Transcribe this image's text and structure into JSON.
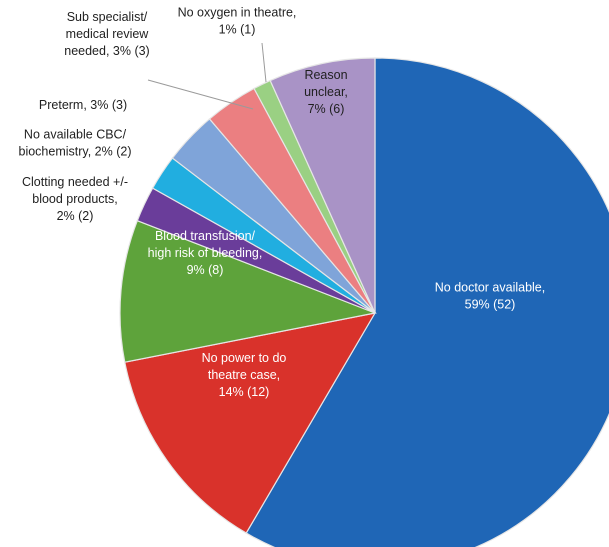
{
  "chart_data": {
    "type": "pie",
    "title": "",
    "slices": [
      {
        "label": "No doctor available, 59% (52)",
        "lines": [
          "No doctor available,",
          "59% (52)"
        ],
        "value": 52,
        "percent": 59,
        "color": "#1f66b6"
      },
      {
        "label": "No power to do theatre case, 14% (12)",
        "lines": [
          "No power to do",
          "theatre case,",
          "14% (12)"
        ],
        "value": 12,
        "percent": 14,
        "color": "#d9322b"
      },
      {
        "label": "Blood transfusion/ high risk of bleeding, 9% (8)",
        "lines": [
          "Blood transfusion/",
          "high risk of bleeding,",
          "9% (8)"
        ],
        "value": 8,
        "percent": 9,
        "color": "#5ea33b"
      },
      {
        "label": "Clotting needed +/- blood products, 2% (2)",
        "lines": [
          "Clotting needed +/-",
          "blood products,",
          "2% (2)"
        ],
        "value": 2,
        "percent": 2,
        "color": "#6a3d9a"
      },
      {
        "label": "No available CBC/ biochemistry, 2% (2)",
        "lines": [
          "No available CBC/",
          "biochemistry, 2% (2)"
        ],
        "value": 2,
        "percent": 2,
        "color": "#21aee0"
      },
      {
        "label": "Preterm, 3% (3)",
        "lines": [
          "Preterm, 3% (3)"
        ],
        "value": 3,
        "percent": 3,
        "color": "#7fa4d9"
      },
      {
        "label": "Sub specialist/ medical review needed, 3% (3)",
        "lines": [
          "Sub specialist/",
          "medical review",
          "needed, 3% (3)"
        ],
        "value": 3,
        "percent": 3,
        "color": "#eb7f81"
      },
      {
        "label": "No oxygen in theatre, 1% (1)",
        "lines": [
          "No oxygen in theatre,",
          "1% (1)"
        ],
        "value": 1,
        "percent": 1,
        "color": "#9ad083"
      },
      {
        "label": "Reason unclear, 7% (6)",
        "lines": [
          "Reason",
          "unclear,",
          "7% (6)"
        ],
        "value": 6,
        "percent": 7,
        "color": "#a993c6"
      }
    ],
    "legend": "none"
  }
}
